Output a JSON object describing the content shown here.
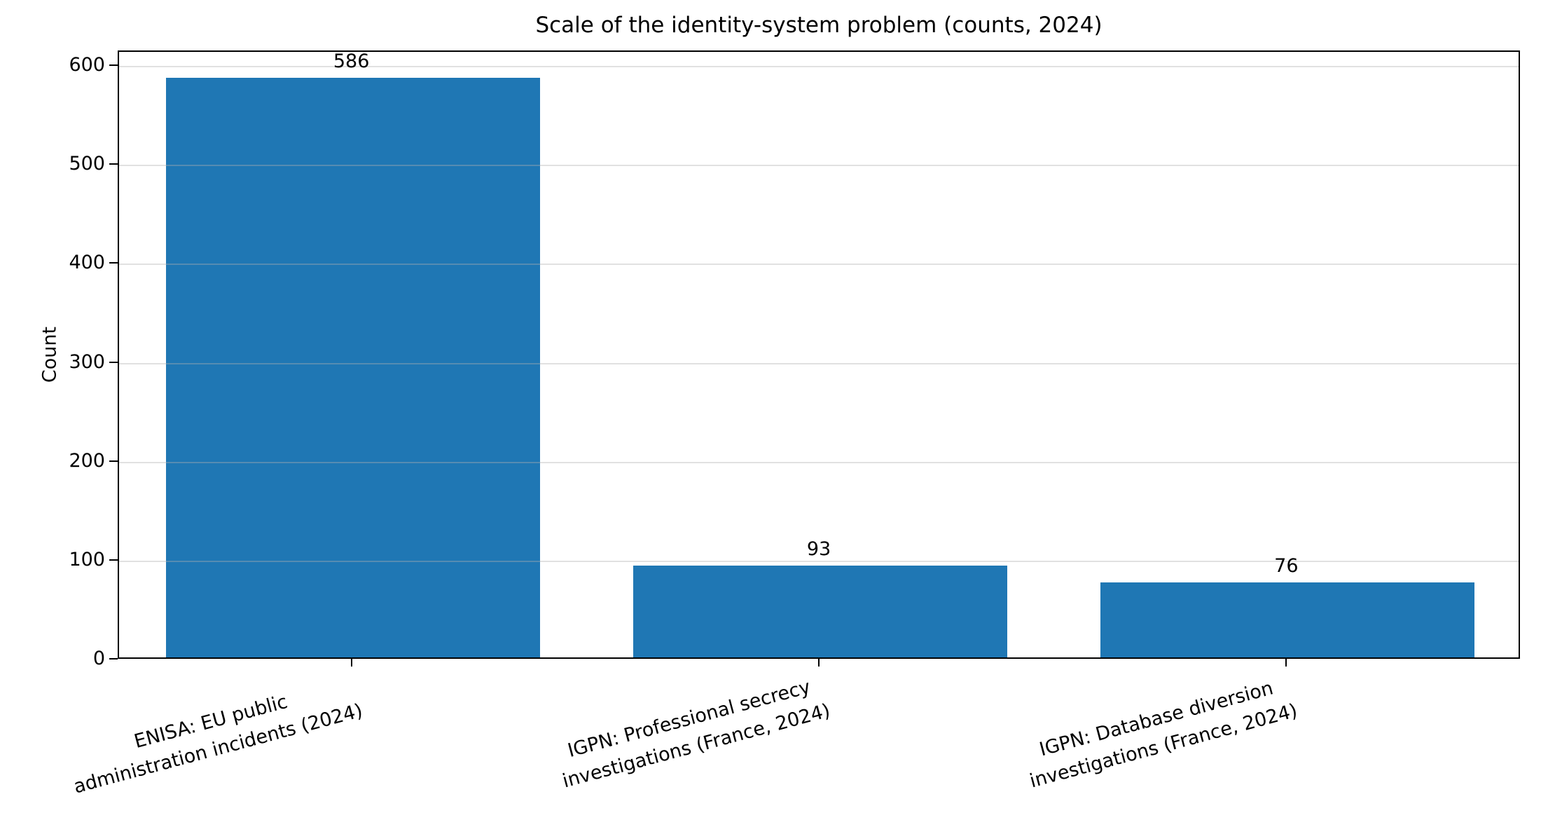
{
  "figure": {
    "background": "#ffffff",
    "text_color": "#000000"
  },
  "chart_data": {
    "type": "bar",
    "title": "Scale of the identity-system problem (counts, 2024)",
    "xlabel": "",
    "ylabel": "Count",
    "categories": [
      "ENISA: EU public\nadministration incidents (2024)",
      "IGPN: Professional secrecy\ninvestigations (France, 2024)",
      "IGPN: Database diversion\ninvestigations (France, 2024)"
    ],
    "values": [
      586,
      93,
      76
    ],
    "value_labels": [
      "586",
      "93",
      "76"
    ],
    "yticks": [
      0,
      100,
      200,
      300,
      400,
      500,
      600
    ],
    "ylim": [
      0,
      615
    ],
    "bar_color": "#1f77b4",
    "bar_width_fraction": 0.8,
    "grid": "horizontal",
    "gridline_color": "rgba(176,176,176,0.38)",
    "spine_color": "#000000",
    "xtick_label_rotation_deg": 15,
    "legend": null
  }
}
